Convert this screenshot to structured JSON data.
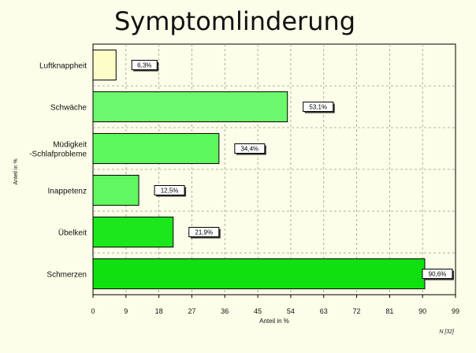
{
  "chart_data": {
    "type": "bar",
    "orientation": "horizontal",
    "title": "Symptomlinderung",
    "xlabel": "Anteil in %",
    "ylabel": "Anteil in %",
    "xlim": [
      0,
      99
    ],
    "xticks": [
      "0",
      "9",
      "18",
      "27",
      "36",
      "45",
      "54",
      "63",
      "72",
      "81",
      "90",
      "99"
    ],
    "grid": true,
    "categories": [
      "Luftknappheit",
      "Schwäche",
      "Müdigkeit -Schlafprobleme",
      "Inappetenz",
      "Übelkeit",
      "Schmerzen"
    ],
    "category_lines": [
      [
        "Luftknappheit"
      ],
      [
        "Schwäche"
      ],
      [
        "Müdigkeit",
        "-Schlafprobleme"
      ],
      [
        "Inappetenz"
      ],
      [
        "Übelkeit"
      ],
      [
        "Schmerzen"
      ]
    ],
    "values": [
      6.3,
      53.1,
      34.4,
      12.5,
      21.9,
      90.6
    ],
    "value_labels": [
      "6,3%",
      "53,1%",
      "34,4%",
      "12,5%",
      "21,9%",
      "90,6%"
    ],
    "colors": [
      "#fdfdc8",
      "#6cf86c",
      "#5ef75e",
      "#60f760",
      "#1ae81a",
      "#10e010"
    ],
    "note": "N [32]"
  }
}
